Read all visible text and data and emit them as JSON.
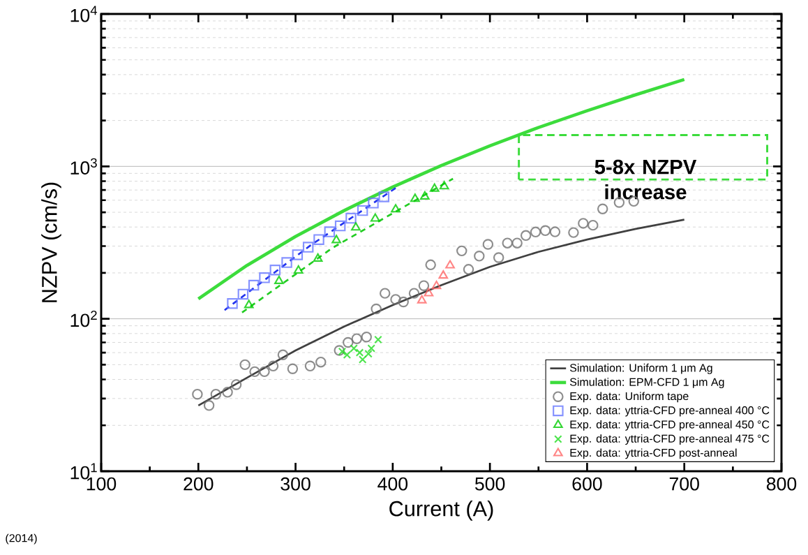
{
  "chart_data": {
    "type": "line",
    "xlabel": "Current (A)",
    "ylabel": "NZPV (cm/s)",
    "log": "y",
    "grid": "y",
    "legend": "bottom right",
    "xlim": [
      100,
      800
    ],
    "ylim": [
      10,
      10000
    ],
    "xticks": [
      100,
      200,
      300,
      400,
      500,
      600,
      700,
      800
    ],
    "yticks": [
      {
        "value": 10,
        "label": "10$^{1}$"
      },
      {
        "value": 100,
        "label": "10$^{2}$"
      },
      {
        "value": 1000,
        "label": "10$^{3}$"
      },
      {
        "value": 10000,
        "label": "10$^{4}$"
      }
    ],
    "annotations": [
      "5-8x NZPV increase",
      "(2014)"
    ],
    "series": [
      {
        "name": "Simulation: Uniform 1 μm Ag",
        "color": "#404040",
        "marker": "none",
        "line_style": "solid",
        "x": [
          200,
          250,
          300,
          350,
          400,
          450,
          500,
          550,
          600,
          650,
          700
        ],
        "values": [
          27,
          41,
          62,
          89,
          123,
          166,
          219,
          275,
          331,
          389,
          447
        ]
      },
      {
        "name": "Simulation: EPM-CFD 1 μm Ag",
        "color": "#3cdc3c",
        "marker": "none",
        "line_style": "solid",
        "x": [
          200,
          250,
          300,
          350,
          400,
          450,
          500,
          550,
          600,
          650,
          700
        ],
        "values": [
          135,
          224,
          347,
          513,
          733,
          1012,
          1365,
          1800,
          2317,
          2951,
          3715
        ]
      },
      {
        "color": "#2233ee",
        "marker": "none",
        "line_style": "dashed",
        "x": [
          227,
          315,
          403
        ],
        "values": [
          114,
          302,
          721
        ]
      },
      {
        "color": "#22cc22",
        "marker": "none",
        "line_style": "dashed",
        "x": [
          245,
          338,
          462
        ],
        "values": [
          110,
          292,
          830
        ]
      },
      {
        "name": "Exp. data: Uniform tape",
        "type": "scatter",
        "color": "#707070",
        "marker": "circle",
        "x": [
          199,
          211,
          218,
          230,
          239,
          248,
          258,
          268,
          277,
          287,
          297,
          315,
          326,
          345,
          354,
          363,
          373,
          383,
          392,
          403,
          411,
          422,
          432,
          439,
          471,
          478,
          489,
          498,
          509,
          518,
          528,
          537,
          547,
          557,
          567,
          586,
          596,
          606,
          616,
          633,
          648
        ],
        "values": [
          32,
          27,
          32,
          33,
          37,
          50,
          45,
          45,
          49,
          58,
          47,
          49,
          52,
          62,
          70,
          74,
          76,
          116,
          147,
          134,
          129,
          147,
          165,
          226,
          279,
          211,
          258,
          308,
          252,
          314,
          314,
          352,
          371,
          379,
          372,
          368,
          423,
          411,
          526,
          580,
          590
        ]
      },
      {
        "name": "Exp. data: yttria-CFD pre-anneal 400 °C",
        "type": "scatter",
        "color": "#6677ff",
        "marker": "square",
        "x": [
          235,
          246,
          257,
          268,
          279,
          291,
          302,
          313,
          324,
          335,
          346,
          357,
          369,
          380,
          391
        ],
        "values": [
          126,
          145,
          166,
          186,
          209,
          234,
          263,
          295,
          331,
          372,
          407,
          457,
          513,
          575,
          631
        ]
      },
      {
        "name": "Exp. data: yttria-CFD pre-anneal 450 °C",
        "type": "scatter",
        "color": "#00cc00",
        "marker": "triangle",
        "x": [
          252,
          283,
          303,
          323,
          342,
          362,
          382,
          403,
          423,
          433,
          443,
          453
        ],
        "values": [
          123,
          177,
          207,
          248,
          328,
          397,
          454,
          522,
          612,
          634,
          713,
          740
        ]
      },
      {
        "name": "Exp. data: yttria-CFD pre-anneal 475 °C",
        "type": "scatter",
        "color": "#22dd22",
        "marker": "cross",
        "x": [
          348,
          353,
          360,
          366,
          369,
          375,
          378,
          385
        ],
        "values": [
          61,
          58,
          64,
          60,
          54,
          59,
          64,
          73
        ]
      },
      {
        "name": "Exp. data: yttria-CFD post-anneal",
        "type": "scatter",
        "color": "#ff6666",
        "marker": "triangle",
        "x": [
          430,
          437,
          445,
          452,
          459
        ],
        "values": [
          132,
          147,
          164,
          192,
          224
        ]
      }
    ]
  }
}
